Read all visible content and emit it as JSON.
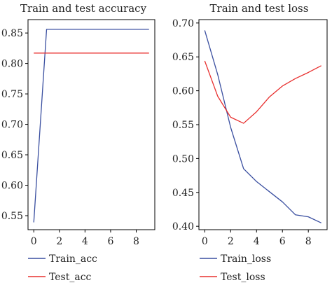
{
  "chart_data": [
    {
      "type": "line",
      "title": "Train and test accuracy",
      "xlabel": "",
      "ylabel": "",
      "x": [
        0,
        1,
        2,
        3,
        4,
        5,
        6,
        7,
        8,
        9
      ],
      "xlim": [
        -0.45,
        9.45
      ],
      "ylim": [
        0.527,
        0.872
      ],
      "xticks": [
        0,
        2,
        4,
        6,
        8
      ],
      "yticks": [
        0.55,
        0.6,
        0.65,
        0.7,
        0.75,
        0.8,
        0.85
      ],
      "ytick_labels": [
        "0.55",
        "0.60",
        "0.65",
        "0.70",
        "0.75",
        "0.80",
        "0.85"
      ],
      "grid": false,
      "legend": "below",
      "series": [
        {
          "name": "Train_acc",
          "color": "#3a4fa0",
          "values": [
            0.539,
            0.856,
            0.856,
            0.856,
            0.856,
            0.856,
            0.856,
            0.856,
            0.856,
            0.856
          ]
        },
        {
          "name": "Test_acc",
          "color": "#e8302f",
          "values": [
            0.817,
            0.817,
            0.817,
            0.817,
            0.817,
            0.817,
            0.817,
            0.817,
            0.817,
            0.817
          ]
        }
      ]
    },
    {
      "type": "line",
      "title": "Train and test loss",
      "xlabel": "",
      "ylabel": "",
      "x": [
        0,
        1,
        2,
        3,
        4,
        5,
        6,
        7,
        8,
        9
      ],
      "xlim": [
        -0.45,
        9.45
      ],
      "ylim": [
        0.395,
        0.705
      ],
      "xticks": [
        0,
        2,
        4,
        6,
        8
      ],
      "yticks": [
        0.4,
        0.45,
        0.5,
        0.55,
        0.6,
        0.65,
        0.7
      ],
      "ytick_labels": [
        "0.40",
        "0.45",
        "0.50",
        "0.55",
        "0.60",
        "0.65",
        "0.70"
      ],
      "grid": false,
      "legend": "below",
      "series": [
        {
          "name": "Train_loss",
          "color": "#3a4fa0",
          "values": [
            0.689,
            0.624,
            0.546,
            0.485,
            0.466,
            0.451,
            0.436,
            0.417,
            0.414,
            0.405
          ]
        },
        {
          "name": "Test_loss",
          "color": "#e8302f",
          "values": [
            0.644,
            0.592,
            0.561,
            0.552,
            0.569,
            0.591,
            0.607,
            0.618,
            0.627,
            0.637
          ]
        }
      ]
    }
  ]
}
